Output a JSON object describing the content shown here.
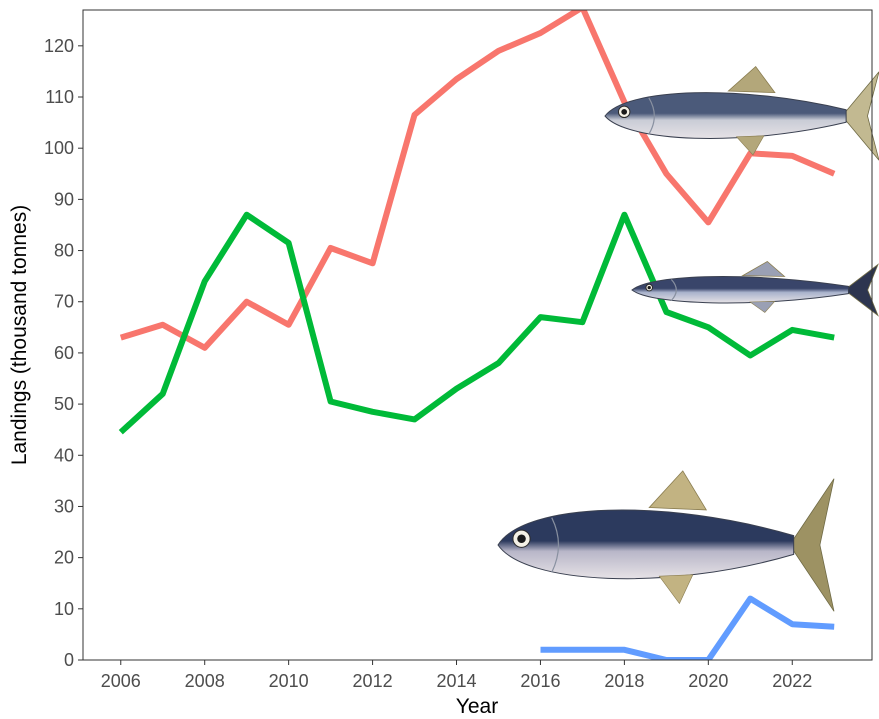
{
  "chart_data": {
    "type": "line",
    "title": "",
    "xlabel": "Year",
    "ylabel": "Landings (thousand tonnes)",
    "xlim": [
      2005.1,
      2023.9
    ],
    "ylim": [
      0,
      127
    ],
    "x_ticks": [
      2006,
      2008,
      2010,
      2012,
      2014,
      2016,
      2018,
      2020,
      2022
    ],
    "y_ticks": [
      0,
      10,
      20,
      30,
      40,
      50,
      60,
      70,
      80,
      90,
      100,
      110,
      120
    ],
    "grid": false,
    "legend": "none",
    "series": [
      {
        "color": "#f8766d",
        "icon": "sardine-illustration",
        "x": [
          2006,
          2007,
          2008,
          2009,
          2010,
          2011,
          2012,
          2013,
          2014,
          2015,
          2016,
          2017,
          2018,
          2019,
          2020,
          2021,
          2022,
          2023
        ],
        "values": [
          63,
          65.5,
          61,
          70,
          65.5,
          80.5,
          77.5,
          106.5,
          113.5,
          119,
          122.5,
          127.5,
          109,
          95,
          85.5,
          99,
          98.5,
          95
        ]
      },
      {
        "color": "#00ba38",
        "icon": "anchovy-illustration",
        "x": [
          2006,
          2007,
          2008,
          2009,
          2010,
          2011,
          2012,
          2013,
          2014,
          2015,
          2016,
          2017,
          2018,
          2019,
          2020,
          2021,
          2022,
          2023
        ],
        "values": [
          44.5,
          52,
          74,
          87,
          81.5,
          50.5,
          48.5,
          47,
          53,
          58,
          67,
          66,
          87,
          68,
          65,
          59.5,
          64.5,
          63
        ]
      },
      {
        "color": "#619cff",
        "icon": "herring-illustration",
        "x": [
          2016,
          2017,
          2018,
          2019,
          2020,
          2021,
          2022,
          2023
        ],
        "values": [
          2,
          2,
          2,
          0,
          0,
          12,
          7,
          6.5
        ]
      }
    ]
  }
}
